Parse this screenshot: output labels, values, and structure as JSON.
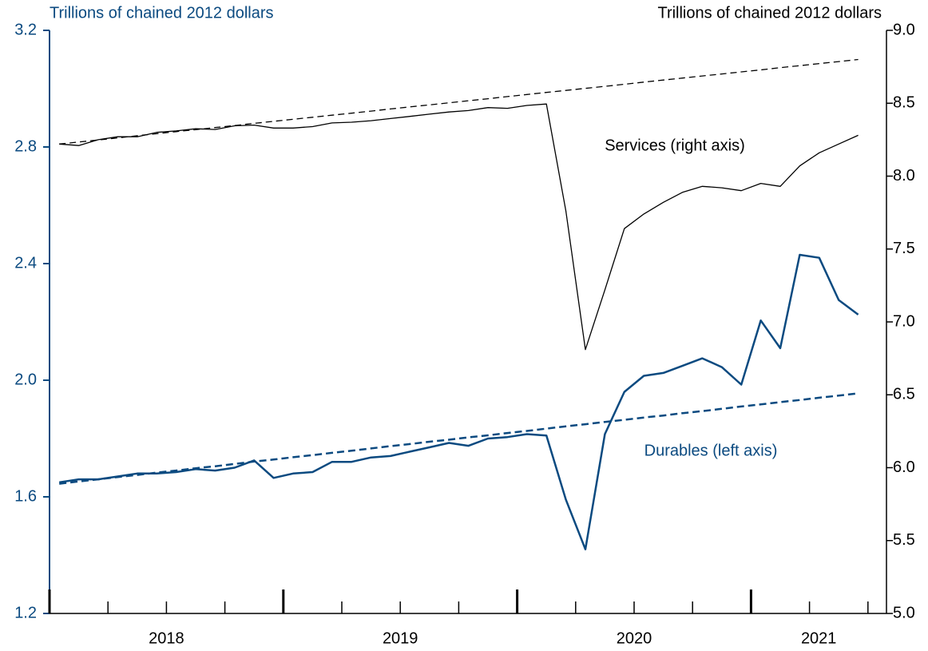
{
  "chart_data": {
    "type": "line",
    "y_label": "Trillions of chained 2012 dollars",
    "y2_label": "Trillions of chained 2012 dollars",
    "annotations": [
      "Services (right axis)",
      "Durables (left axis)"
    ],
    "categories": [
      "2018",
      null,
      null,
      null,
      null,
      null,
      null,
      null,
      null,
      null,
      null,
      null,
      "2019",
      null,
      null,
      null,
      null,
      null,
      null,
      null,
      null,
      null,
      null,
      null,
      "2020",
      null,
      null,
      null,
      null,
      null,
      null,
      null,
      null,
      null,
      null,
      null,
      "2021",
      null,
      null,
      null,
      null,
      null
    ],
    "ylim": [
      1.2,
      3.2
    ],
    "yticks": [
      1.2,
      1.6,
      {
        "value": 2,
        "label": "2.0"
      },
      2.4,
      2.8,
      3.2
    ],
    "y2lim": [
      5,
      9
    ],
    "y2ticks": [
      {
        "value": 5,
        "label": "5.0"
      },
      5.5,
      {
        "value": 6,
        "label": "6.0"
      },
      6.5,
      {
        "value": 7,
        "label": "7.0"
      },
      7.5,
      {
        "value": 8,
        "label": "8.0"
      },
      8.5,
      {
        "value": 9,
        "label": "9.0"
      }
    ],
    "left_axis_color": "#0b4a80",
    "series": [
      {
        "name": "Durables",
        "color": "#0b4a80",
        "axis": "y",
        "dashed": false,
        "values": [
          1.65,
          1.66,
          1.66,
          1.67,
          1.68,
          1.68,
          1.685,
          1.695,
          1.69,
          1.7,
          1.725,
          1.665,
          1.68,
          1.685,
          1.72,
          1.72,
          1.735,
          1.74,
          1.755,
          1.77,
          1.785,
          1.775,
          1.8,
          1.805,
          1.815,
          1.81,
          1.59,
          1.42,
          1.815,
          1.96,
          2.015,
          2.025,
          2.05,
          2.075,
          2.045,
          1.985,
          2.205,
          2.11,
          2.43,
          2.42,
          2.275,
          2.225
        ]
      },
      {
        "color": "#0b4a80",
        "axis": "y",
        "dashed": true,
        "values": [
          1.645,
          1.653,
          1.66,
          1.668,
          1.675,
          1.683,
          1.69,
          1.698,
          1.705,
          1.713,
          1.721,
          1.728,
          1.736,
          1.743,
          1.751,
          1.758,
          1.766,
          1.774,
          1.781,
          1.789,
          1.796,
          1.804,
          1.811,
          1.819,
          1.826,
          1.834,
          1.842,
          1.849,
          1.857,
          1.864,
          1.872,
          1.879,
          1.887,
          1.894,
          1.902,
          1.91,
          1.917,
          1.925,
          1.932,
          1.94,
          1.947,
          1.955
        ]
      },
      {
        "name": "Services",
        "color": "#000000",
        "axis": "y2",
        "dashed": false,
        "values": [
          8.22,
          8.21,
          8.25,
          8.27,
          8.27,
          8.3,
          8.31,
          8.325,
          8.32,
          8.345,
          8.35,
          8.33,
          8.33,
          8.34,
          8.365,
          8.37,
          8.38,
          8.395,
          8.41,
          8.425,
          8.44,
          8.45,
          8.47,
          8.465,
          8.485,
          8.495,
          7.76,
          6.81,
          7.22,
          7.64,
          7.74,
          7.82,
          7.89,
          7.93,
          7.92,
          7.9,
          7.95,
          7.93,
          8.07,
          8.16,
          8.22,
          8.28
        ]
      },
      {
        "color": "#000000",
        "axis": "y2",
        "dashed": true,
        "values": [
          8.22,
          8.234,
          8.248,
          8.262,
          8.277,
          8.291,
          8.305,
          8.319,
          8.333,
          8.347,
          8.362,
          8.376,
          8.39,
          8.404,
          8.418,
          8.432,
          8.446,
          8.461,
          8.475,
          8.489,
          8.503,
          8.517,
          8.531,
          8.546,
          8.56,
          8.574,
          8.588,
          8.602,
          8.616,
          8.63,
          8.645,
          8.659,
          8.673,
          8.687,
          8.701,
          8.715,
          8.729,
          8.744,
          8.758,
          8.772,
          8.786,
          8.8
        ]
      }
    ]
  }
}
